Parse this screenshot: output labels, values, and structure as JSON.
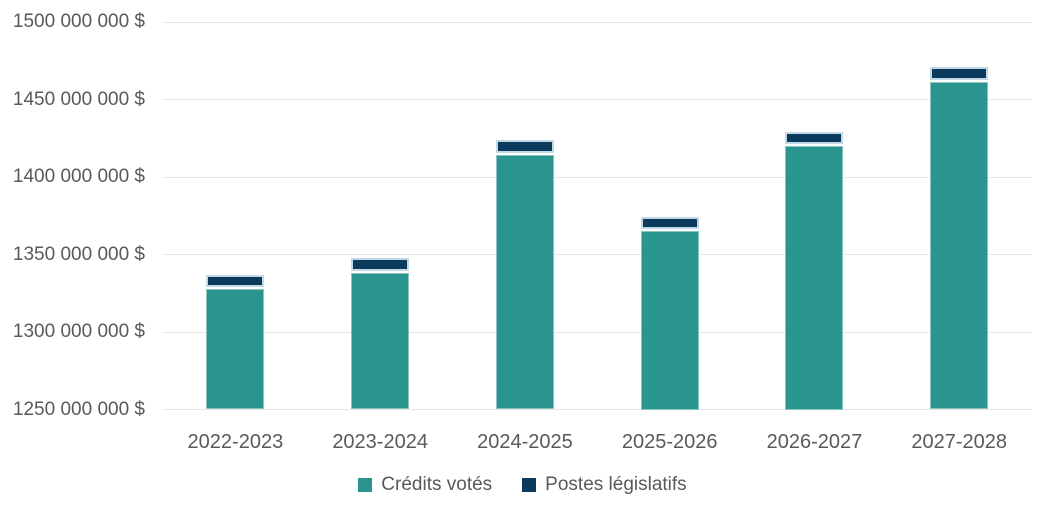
{
  "chart_data": {
    "type": "bar",
    "stacked": true,
    "title": "",
    "xlabel": "",
    "ylabel": "",
    "categories": [
      "2022-2023",
      "2023-2024",
      "2024-2025",
      "2025-2026",
      "2026-2027",
      "2027-2028"
    ],
    "series": [
      {
        "key": "credits-votes",
        "name": "Crédits votés",
        "color": "#2A948E",
        "values": [
          1328000000,
          1338000000,
          1414000000,
          1365000000,
          1420000000,
          1461000000
        ]
      },
      {
        "key": "postes-legislatifs",
        "name": "Postes législatifs",
        "color": "#0A3A5C",
        "values": [
          9000000,
          10000000,
          10000000,
          9000000,
          9000000,
          10000000
        ]
      }
    ],
    "ylim": [
      1250000000,
      1500000000
    ],
    "ytick_step": 50000000,
    "ytick_labels": [
      "1500 000 000 $",
      "1450 000 000 $",
      "1400 000 000 $",
      "1350 000 000 $",
      "1300 000 000 $",
      "1250 000 000 $"
    ],
    "grid": true,
    "legend_position": "bottom",
    "currency_suffix": "$"
  },
  "colors": {
    "teal": "#2A948E",
    "navy": "#0A3A5C",
    "navy_outline": "#C3D8E6",
    "teal_outline": "rgba(255,255,255,0.45)",
    "segment_gap": "#FFFFFF",
    "gridline": "#E8E8E8",
    "axis_text": "#595959",
    "background": "#FFFFFF"
  }
}
